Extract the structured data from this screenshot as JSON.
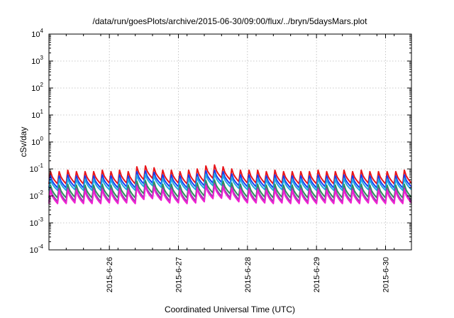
{
  "chart_data": {
    "type": "line",
    "title": "/data/run/goesPlots/archive/2015-06-30/09:00/flux/../bryn/5daysMars.plot",
    "xlabel": "Coordinated Universal Time (UTC)",
    "ylabel": "cSv/day",
    "yscale": "log",
    "ylim": [
      0.0001,
      10000
    ],
    "y_ticks": [
      {
        "base": "10",
        "exp": "4"
      },
      {
        "base": "10",
        "exp": "3"
      },
      {
        "base": "10",
        "exp": "2"
      },
      {
        "base": "10",
        "exp": "1"
      },
      {
        "base": "10",
        "exp": "0"
      },
      {
        "base": "10",
        "exp": "-1"
      },
      {
        "base": "10",
        "exp": "-2"
      },
      {
        "base": "10",
        "exp": "-3"
      },
      {
        "base": "10",
        "exp": "-4"
      }
    ],
    "xlim": [
      "2015-06-25T03:00",
      "2015-06-30T09:00"
    ],
    "x_ticks": [
      "2015-6-26",
      "2015-6-27",
      "2015-6-28",
      "2015-6-29",
      "2015-6-30"
    ],
    "grid": true,
    "legend": "none",
    "pattern": {
      "description": "sawtooth, ~8 sharp rises per day followed by decay",
      "sample_interval_hours": 3
    },
    "series": [
      {
        "color": "#e8151b",
        "peaks": [
          0.08,
          0.08,
          0.09,
          0.08,
          0.08,
          0.08,
          0.09,
          0.08,
          0.09,
          0.08,
          0.12,
          0.13,
          0.11,
          0.09,
          0.09,
          0.08,
          0.09,
          0.1,
          0.13,
          0.14,
          0.12,
          0.1,
          0.09,
          0.09,
          0.09,
          0.08,
          0.09,
          0.08,
          0.08,
          0.08,
          0.08,
          0.09,
          0.08,
          0.08,
          0.09,
          0.08,
          0.09,
          0.08,
          0.08,
          0.08,
          0.08,
          0.09,
          0.08,
          0.08,
          0.08,
          0.08,
          0.08
        ],
        "troughs": [
          0.028,
          0.028,
          0.03,
          0.028,
          0.028,
          0.028,
          0.03,
          0.028,
          0.03,
          0.028,
          0.04,
          0.045,
          0.038,
          0.03,
          0.03,
          0.028,
          0.03,
          0.034,
          0.045,
          0.047,
          0.04,
          0.034,
          0.03,
          0.03,
          0.03,
          0.028,
          0.03,
          0.028,
          0.028,
          0.028,
          0.028,
          0.03,
          0.028,
          0.028,
          0.03,
          0.028,
          0.03,
          0.028,
          0.028,
          0.028,
          0.028,
          0.03,
          0.028,
          0.028,
          0.028,
          0.028,
          0.028
        ]
      },
      {
        "color": "#1a3cf0",
        "peaks": [
          0.055,
          0.055,
          0.06,
          0.055,
          0.055,
          0.055,
          0.06,
          0.055,
          0.06,
          0.055,
          0.08,
          0.085,
          0.075,
          0.06,
          0.06,
          0.055,
          0.06,
          0.065,
          0.085,
          0.09,
          0.08,
          0.065,
          0.06,
          0.06,
          0.06,
          0.055,
          0.06,
          0.055,
          0.055,
          0.055,
          0.055,
          0.06,
          0.055,
          0.055,
          0.06,
          0.055,
          0.06,
          0.055,
          0.055,
          0.055,
          0.055,
          0.06,
          0.055,
          0.055,
          0.055,
          0.055,
          0.055
        ],
        "troughs": [
          0.02,
          0.02,
          0.022,
          0.02,
          0.02,
          0.02,
          0.022,
          0.02,
          0.022,
          0.02,
          0.028,
          0.03,
          0.027,
          0.022,
          0.022,
          0.02,
          0.022,
          0.024,
          0.03,
          0.032,
          0.028,
          0.024,
          0.022,
          0.022,
          0.022,
          0.02,
          0.022,
          0.02,
          0.02,
          0.02,
          0.02,
          0.022,
          0.02,
          0.02,
          0.022,
          0.02,
          0.022,
          0.02,
          0.02,
          0.02,
          0.02,
          0.022,
          0.02,
          0.02,
          0.02,
          0.02,
          0.02
        ]
      },
      {
        "color": "#21a9e3",
        "peaks": [
          0.042,
          0.042,
          0.045,
          0.042,
          0.042,
          0.042,
          0.045,
          0.042,
          0.045,
          0.042,
          0.06,
          0.064,
          0.056,
          0.045,
          0.045,
          0.042,
          0.045,
          0.05,
          0.064,
          0.068,
          0.06,
          0.05,
          0.045,
          0.045,
          0.045,
          0.042,
          0.045,
          0.042,
          0.042,
          0.042,
          0.042,
          0.045,
          0.042,
          0.042,
          0.045,
          0.042,
          0.045,
          0.042,
          0.042,
          0.042,
          0.042,
          0.045,
          0.042,
          0.042,
          0.042,
          0.042,
          0.042
        ],
        "troughs": [
          0.016,
          0.016,
          0.017,
          0.016,
          0.016,
          0.016,
          0.017,
          0.016,
          0.017,
          0.016,
          0.022,
          0.024,
          0.021,
          0.017,
          0.017,
          0.016,
          0.017,
          0.019,
          0.024,
          0.025,
          0.022,
          0.019,
          0.017,
          0.017,
          0.017,
          0.016,
          0.017,
          0.016,
          0.016,
          0.016,
          0.016,
          0.017,
          0.016,
          0.016,
          0.017,
          0.016,
          0.017,
          0.016,
          0.016,
          0.016,
          0.016,
          0.017,
          0.016,
          0.016,
          0.016,
          0.016,
          0.016
        ]
      },
      {
        "color": "#2f8f5a",
        "peaks": [
          0.025,
          0.025,
          0.027,
          0.025,
          0.025,
          0.025,
          0.027,
          0.025,
          0.027,
          0.025,
          0.035,
          0.037,
          0.033,
          0.027,
          0.027,
          0.025,
          0.027,
          0.03,
          0.037,
          0.039,
          0.035,
          0.03,
          0.027,
          0.027,
          0.027,
          0.025,
          0.027,
          0.025,
          0.025,
          0.025,
          0.025,
          0.027,
          0.025,
          0.025,
          0.027,
          0.025,
          0.027,
          0.025,
          0.025,
          0.025,
          0.025,
          0.027,
          0.025,
          0.025,
          0.025,
          0.025,
          0.025
        ],
        "troughs": [
          0.0085,
          0.0085,
          0.009,
          0.0085,
          0.0085,
          0.0085,
          0.009,
          0.0085,
          0.009,
          0.0085,
          0.012,
          0.013,
          0.011,
          0.009,
          0.009,
          0.0085,
          0.009,
          0.01,
          0.013,
          0.0135,
          0.012,
          0.01,
          0.009,
          0.009,
          0.009,
          0.0085,
          0.009,
          0.0085,
          0.0085,
          0.0085,
          0.0085,
          0.009,
          0.0085,
          0.0085,
          0.009,
          0.0085,
          0.009,
          0.0085,
          0.0085,
          0.0085,
          0.0085,
          0.009,
          0.0085,
          0.0085,
          0.0085,
          0.0085,
          0.0085
        ]
      },
      {
        "color": "#8e44ad",
        "peaks": [
          0.019,
          0.019,
          0.02,
          0.019,
          0.019,
          0.019,
          0.02,
          0.019,
          0.02,
          0.019,
          0.026,
          0.028,
          0.025,
          0.02,
          0.02,
          0.019,
          0.02,
          0.022,
          0.028,
          0.029,
          0.026,
          0.022,
          0.02,
          0.02,
          0.02,
          0.019,
          0.02,
          0.019,
          0.019,
          0.019,
          0.019,
          0.02,
          0.019,
          0.019,
          0.02,
          0.019,
          0.02,
          0.019,
          0.019,
          0.019,
          0.019,
          0.02,
          0.019,
          0.019,
          0.019,
          0.019,
          0.019
        ],
        "troughs": [
          0.0062,
          0.0062,
          0.0066,
          0.0062,
          0.0062,
          0.0062,
          0.0066,
          0.0062,
          0.0066,
          0.0062,
          0.0088,
          0.0094,
          0.0082,
          0.0066,
          0.0066,
          0.0062,
          0.0066,
          0.0073,
          0.0094,
          0.0098,
          0.0088,
          0.0073,
          0.0066,
          0.0066,
          0.0066,
          0.0062,
          0.0066,
          0.0062,
          0.0062,
          0.0062,
          0.0062,
          0.0066,
          0.0062,
          0.0062,
          0.0066,
          0.0062,
          0.0066,
          0.0062,
          0.0062,
          0.0062,
          0.0062,
          0.0066,
          0.0062,
          0.0062,
          0.0062,
          0.0062,
          0.0062
        ]
      },
      {
        "color": "#f01fd2",
        "peaks": [
          0.016,
          0.016,
          0.017,
          0.016,
          0.016,
          0.016,
          0.017,
          0.016,
          0.017,
          0.016,
          0.022,
          0.024,
          0.021,
          0.017,
          0.017,
          0.016,
          0.017,
          0.019,
          0.024,
          0.025,
          0.022,
          0.019,
          0.017,
          0.017,
          0.017,
          0.016,
          0.017,
          0.016,
          0.016,
          0.016,
          0.016,
          0.017,
          0.016,
          0.016,
          0.017,
          0.016,
          0.017,
          0.016,
          0.016,
          0.016,
          0.016,
          0.017,
          0.016,
          0.016,
          0.016,
          0.016,
          0.016
        ],
        "troughs": [
          0.0052,
          0.0052,
          0.0055,
          0.0052,
          0.0052,
          0.0052,
          0.0055,
          0.0052,
          0.0055,
          0.0052,
          0.0074,
          0.0079,
          0.0069,
          0.0055,
          0.0055,
          0.0052,
          0.0055,
          0.0061,
          0.0079,
          0.0082,
          0.0074,
          0.0061,
          0.0055,
          0.0055,
          0.0055,
          0.0052,
          0.0055,
          0.0052,
          0.0052,
          0.0052,
          0.0052,
          0.0055,
          0.0052,
          0.0052,
          0.0055,
          0.0052,
          0.0055,
          0.0052,
          0.0052,
          0.0052,
          0.0052,
          0.0055,
          0.0052,
          0.0052,
          0.0052,
          0.0052,
          0.0052
        ]
      }
    ]
  }
}
